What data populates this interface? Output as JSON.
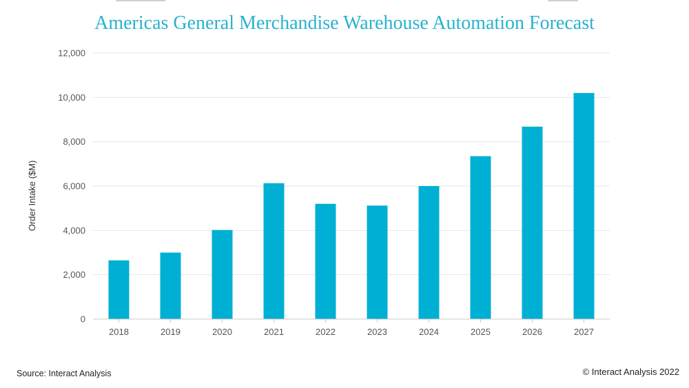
{
  "chart_data": {
    "type": "bar",
    "title": "Americas General Merchandise Warehouse Automation Forecast",
    "ylabel": "Order Intake ($M)",
    "xlabel": "",
    "categories": [
      "2018",
      "2019",
      "2020",
      "2021",
      "2022",
      "2023",
      "2024",
      "2025",
      "2026",
      "2027"
    ],
    "values": [
      2650,
      3000,
      4020,
      6130,
      5200,
      5120,
      6000,
      7350,
      8680,
      10200
    ],
    "ylim": [
      0,
      12000
    ],
    "yticks": [
      "0",
      "2,000",
      "4,000",
      "6,000",
      "8,000",
      "10,000",
      "12,000"
    ],
    "ytick_values": [
      0,
      2000,
      4000,
      6000,
      8000,
      10000,
      12000
    ],
    "grid": true,
    "bar_color": "#00b0d4"
  },
  "footer": {
    "source": "Source: Interact Analysis",
    "copyright": "© Interact Analysis 2022"
  }
}
